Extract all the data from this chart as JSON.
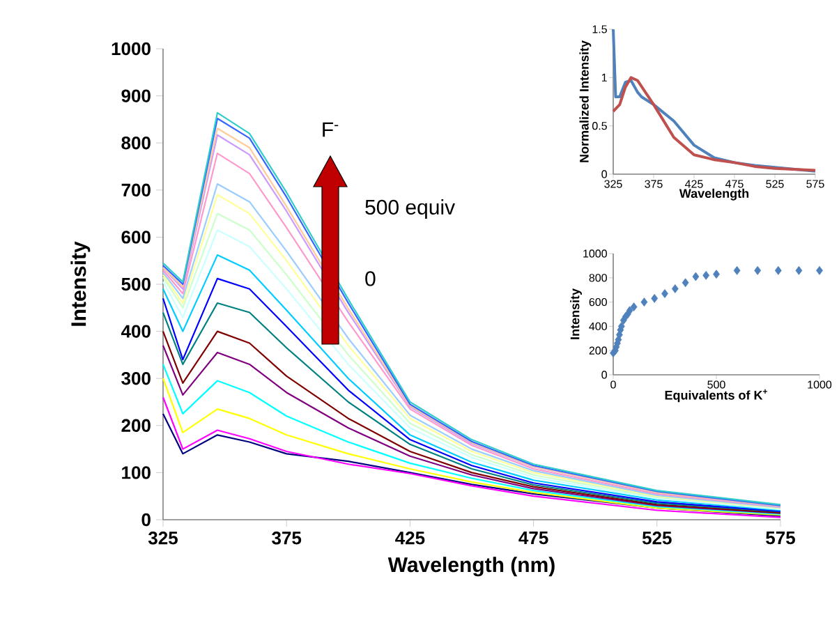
{
  "chart_data": [
    {
      "type": "line",
      "xlabel": "Wavelength (nm)",
      "ylabel": "Intensity",
      "xlim": [
        325,
        575
      ],
      "ylim": [
        0,
        1000
      ],
      "xticks": [
        325,
        375,
        425,
        475,
        525,
        575
      ],
      "yticks": [
        0,
        100,
        200,
        300,
        400,
        500,
        600,
        700,
        800,
        900,
        1000
      ],
      "annotations": [
        "F$^{-}$",
        "500 equiv",
        "0"
      ],
      "x": [
        325,
        333,
        347,
        360,
        375,
        400,
        425,
        450,
        475,
        525,
        575
      ],
      "series": [
        {
          "color": "#000080",
          "values": [
            225,
            140,
            180,
            165,
            140,
            124,
            100,
            75,
            55,
            25,
            8
          ]
        },
        {
          "color": "#ff00ff",
          "values": [
            260,
            150,
            190,
            172,
            145,
            118,
            98,
            72,
            50,
            20,
            5
          ]
        },
        {
          "color": "#ffff00",
          "values": [
            300,
            185,
            235,
            215,
            180,
            140,
            108,
            80,
            58,
            25,
            10
          ]
        },
        {
          "color": "#00ffff",
          "values": [
            330,
            225,
            295,
            270,
            220,
            165,
            120,
            88,
            62,
            28,
            12
          ]
        },
        {
          "color": "#800080",
          "values": [
            370,
            265,
            355,
            330,
            270,
            195,
            135,
            95,
            66,
            30,
            14
          ]
        },
        {
          "color": "#800000",
          "values": [
            400,
            290,
            400,
            375,
            305,
            215,
            145,
            100,
            70,
            32,
            15
          ]
        },
        {
          "color": "#008080",
          "values": [
            440,
            330,
            460,
            440,
            365,
            250,
            160,
            108,
            74,
            35,
            17
          ]
        },
        {
          "color": "#0000ff",
          "values": [
            470,
            340,
            512,
            490,
            410,
            275,
            170,
            115,
            78,
            38,
            18
          ]
        },
        {
          "color": "#00ccff",
          "values": [
            490,
            400,
            562,
            530,
            445,
            300,
            180,
            122,
            84,
            42,
            20
          ]
        },
        {
          "color": "#ccffff",
          "values": [
            505,
            430,
            615,
            580,
            490,
            330,
            195,
            132,
            90,
            45,
            22
          ]
        },
        {
          "color": "#ccffcc",
          "values": [
            515,
            450,
            650,
            615,
            520,
            350,
            205,
            138,
            95,
            48,
            24
          ]
        },
        {
          "color": "#ffff99",
          "values": [
            520,
            460,
            690,
            650,
            550,
            370,
            215,
            145,
            100,
            50,
            25
          ]
        },
        {
          "color": "#99ccff",
          "values": [
            525,
            470,
            713,
            675,
            570,
            385,
            222,
            150,
            104,
            52,
            26
          ]
        },
        {
          "color": "#ff99cc",
          "values": [
            530,
            480,
            778,
            735,
            620,
            420,
            235,
            158,
            108,
            55,
            27
          ]
        },
        {
          "color": "#cc99ff",
          "values": [
            535,
            490,
            817,
            775,
            655,
            440,
            240,
            162,
            112,
            58,
            28
          ]
        },
        {
          "color": "#ffcc99",
          "values": [
            535,
            495,
            831,
            790,
            665,
            448,
            242,
            164,
            113,
            58,
            29
          ]
        },
        {
          "color": "#3366ff",
          "values": [
            540,
            500,
            852,
            810,
            685,
            460,
            245,
            166,
            115,
            60,
            30
          ]
        },
        {
          "color": "#33cccc",
          "values": [
            545,
            505,
            864,
            820,
            695,
            468,
            250,
            170,
            118,
            62,
            32
          ]
        }
      ]
    },
    {
      "type": "line",
      "xlabel": "Wavelength",
      "ylabel": "Normalized Intensity",
      "xlim": [
        325,
        575
      ],
      "ylim": [
        0,
        1.5
      ],
      "xticks": [
        325,
        375,
        425,
        475,
        525,
        575
      ],
      "yticks": [
        0,
        0.5,
        1,
        1.5
      ],
      "series": [
        {
          "color": "#4f81bd",
          "x": [
            325,
            328,
            333,
            340,
            347,
            355,
            360,
            375,
            400,
            425,
            450,
            475,
            500,
            525,
            575
          ],
          "values": [
            1.5,
            0.8,
            0.8,
            0.95,
            0.97,
            0.85,
            0.8,
            0.72,
            0.55,
            0.3,
            0.17,
            0.12,
            0.09,
            0.07,
            0.03
          ]
        },
        {
          "color": "#c0504d",
          "x": [
            325,
            333,
            340,
            347,
            355,
            375,
            400,
            425,
            450,
            475,
            500,
            525,
            575
          ],
          "values": [
            0.65,
            0.72,
            0.9,
            1.0,
            0.97,
            0.72,
            0.38,
            0.2,
            0.15,
            0.12,
            0.08,
            0.06,
            0.04
          ]
        }
      ]
    },
    {
      "type": "scatter",
      "xlabel": "Equivalents of K$^{+}$",
      "ylabel": "Intensity",
      "xlim": [
        0,
        1000
      ],
      "ylim": [
        0,
        1000
      ],
      "xticks": [
        0,
        500,
        1000
      ],
      "yticks": [
        0,
        200,
        400,
        600,
        800,
        1000
      ],
      "marker": "diamond",
      "x": [
        0,
        10,
        15,
        20,
        25,
        30,
        35,
        40,
        50,
        60,
        70,
        80,
        100,
        150,
        200,
        250,
        300,
        350,
        400,
        450,
        500,
        600,
        700,
        800,
        900,
        1000
      ],
      "series": [
        {
          "color": "#4f81bd",
          "values": [
            180,
            200,
            230,
            260,
            290,
            330,
            370,
            400,
            450,
            480,
            500,
            530,
            560,
            600,
            630,
            670,
            710,
            760,
            810,
            820,
            830,
            860,
            860,
            860,
            860,
            860
          ]
        }
      ]
    }
  ]
}
